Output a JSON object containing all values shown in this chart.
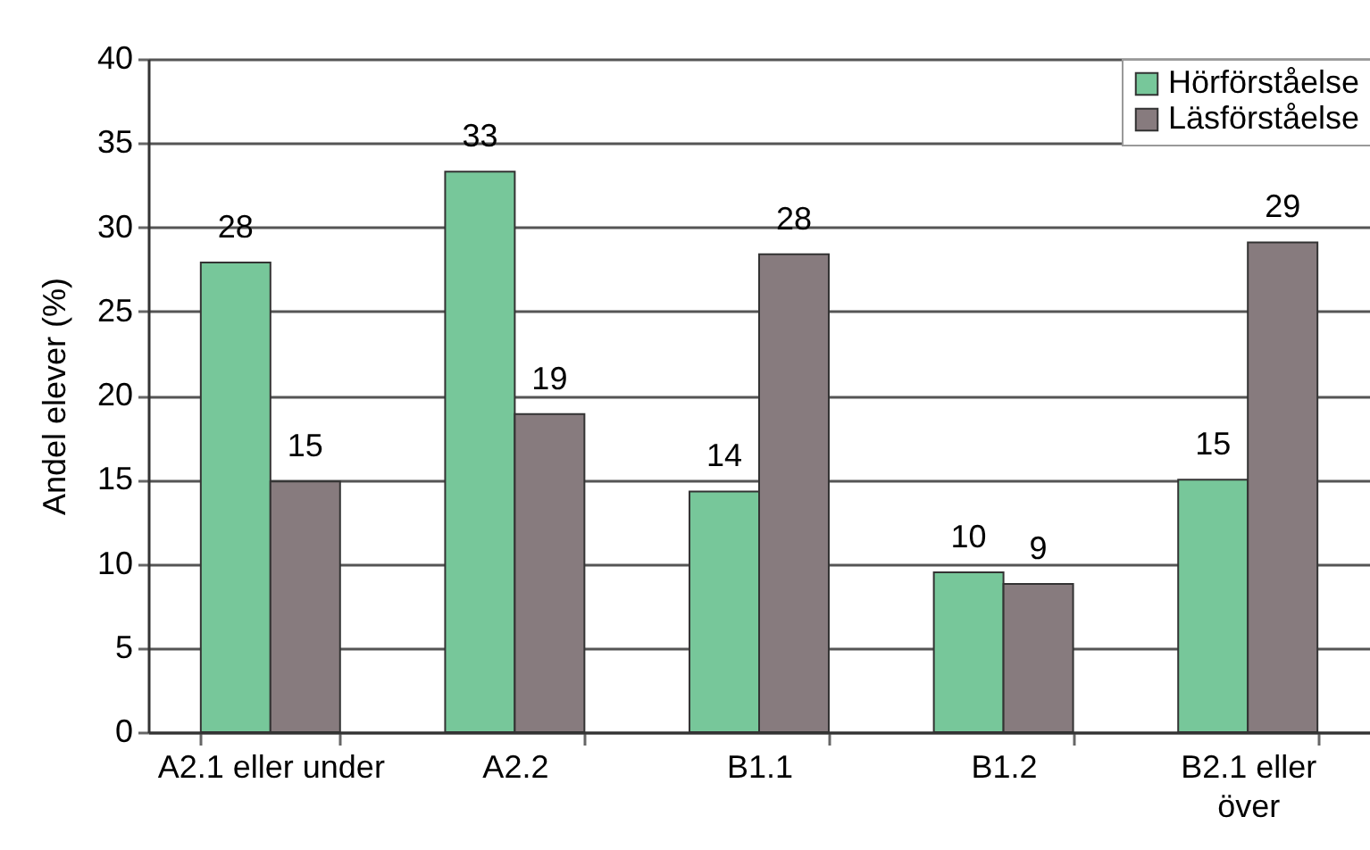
{
  "chart_data": {
    "type": "bar",
    "ylabel": "Andel elever (%)",
    "categories": [
      "A2.1 eller under",
      "A2.2",
      "B1.1",
      "B1.2",
      "B2.1 eller över"
    ],
    "series": [
      {
        "name": "Hörförståelse",
        "color": "#77c79a",
        "values": [
          27.9,
          33.3,
          14.3,
          9.5,
          15.0
        ],
        "value_labels": [
          "28",
          "33",
          "14",
          "10",
          "15"
        ]
      },
      {
        "name": "Läsförståelse",
        "color": "#877b7e",
        "values": [
          14.9,
          18.9,
          28.4,
          8.8,
          29.1
        ],
        "value_labels": [
          "15",
          "19",
          "28",
          "9",
          "29"
        ]
      }
    ],
    "ylim": [
      0,
      40
    ],
    "yticks": [
      0,
      5,
      10,
      15,
      20,
      25,
      30,
      35,
      40
    ],
    "grid": "y",
    "legend": "top right"
  }
}
